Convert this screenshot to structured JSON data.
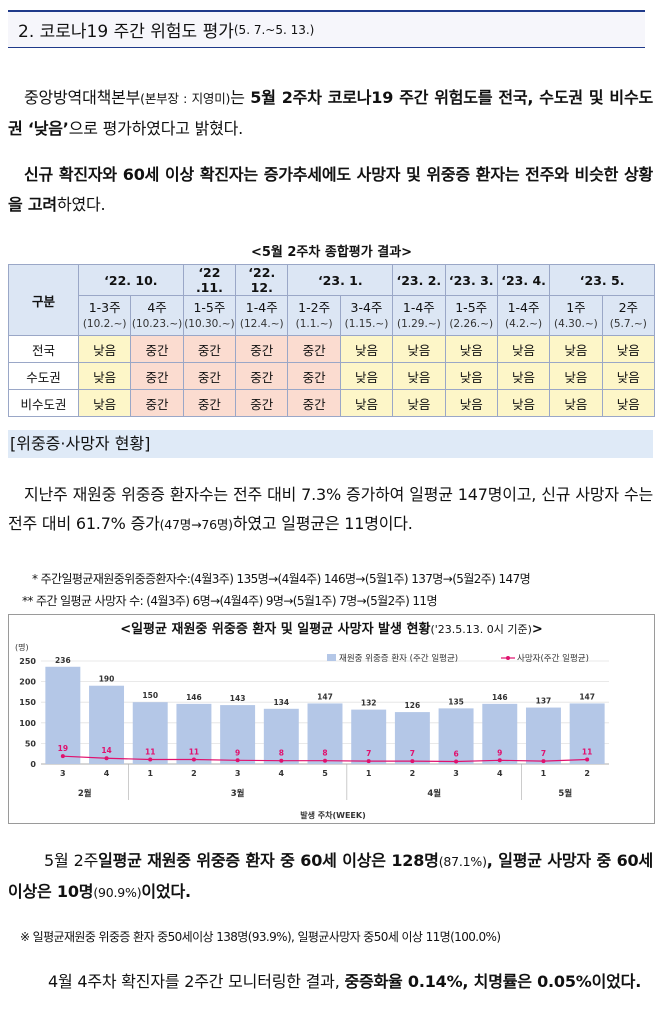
{
  "section": {
    "title_main": "2. 코로나19 주간 위험도 평가",
    "title_period": "(5. 7.~5. 13.)"
  },
  "para1": {
    "t1": "중앙방역대책본부",
    "t2": "(본부장 : 지영미)",
    "t3": "는 ",
    "t4": "5월 2주차 코로나19 주간 위험도를 전국, 수도권 및 비수도권 ‘낮음’",
    "t5": "으로 평가하였다고 밝혔다."
  },
  "para2": {
    "t1": "신규 확진자와 60세 이상 확진자는 증가추세에도 사망자 및 위중증 환자는 전주와 비슷한 상황을 고려",
    "t2": "하였다."
  },
  "table": {
    "title": "<5월 2주차 종합평가 결과>",
    "corner": "구분",
    "months": [
      {
        "label": "‘22. 10.",
        "span": 2
      },
      {
        "label": "‘22 .11.",
        "span": 1
      },
      {
        "label": "‘22. 12.",
        "span": 1
      },
      {
        "label": "‘23. 1.",
        "span": 2
      },
      {
        "label": "‘23. 2.",
        "span": 1
      },
      {
        "label": "‘23. 3.",
        "span": 1
      },
      {
        "label": "‘23. 4.",
        "span": 1
      },
      {
        "label": "‘23. 5.",
        "span": 2
      }
    ],
    "weeks": [
      {
        "w": "1-3주",
        "d": "(10.2.~)"
      },
      {
        "w": "4주",
        "d": "(10.23.~)"
      },
      {
        "w": "1-5주",
        "d": "(10.30.~)"
      },
      {
        "w": "1-4주",
        "d": "(12.4.~)"
      },
      {
        "w": "1-2주",
        "d": "(1.1.~)"
      },
      {
        "w": "3-4주",
        "d": "(1.15.~)"
      },
      {
        "w": "1-4주",
        "d": "(1.29.~)"
      },
      {
        "w": "1-5주",
        "d": "(2.26.~)"
      },
      {
        "w": "1-4주",
        "d": "(4.2.~)"
      },
      {
        "w": "1주",
        "d": "(4.30.~)"
      },
      {
        "w": "2주",
        "d": "(5.7.~)"
      }
    ],
    "rows": [
      {
        "label": "전국",
        "cells": [
          "낮음",
          "중간",
          "중간",
          "중간",
          "중간",
          "낮음",
          "낮음",
          "낮음",
          "낮음",
          "낮음",
          "낮음"
        ]
      },
      {
        "label": "수도권",
        "cells": [
          "낮음",
          "중간",
          "중간",
          "중간",
          "중간",
          "낮음",
          "낮음",
          "낮음",
          "낮음",
          "낮음",
          "낮음"
        ]
      },
      {
        "label": "비수도권",
        "cells": [
          "낮음",
          "중간",
          "중간",
          "중간",
          "중간",
          "낮음",
          "낮음",
          "낮음",
          "낮음",
          "낮음",
          "낮음"
        ]
      }
    ],
    "colors": {
      "low": "#fdf6c8",
      "mid": "#fbdcd0"
    }
  },
  "subsection": "[위중증·사망자 현황]",
  "para3": {
    "t1": "지난주 재원중 위중증 환자수는 전주 대비 7.3% 증가하여 일평균 147명이고, 신규 사망자 수는 전주 대비 61.7% 증가",
    "t2": "(47명→76명)",
    "t3": "하였고 일평균은 11명이다."
  },
  "notes": {
    "n1": "*  주간일평균재원중위중증환자수:(4월3주) 135명→(4월4주) 146명→(5월1주) 137명→(5월2주) 147명",
    "n2": "** 주간 일평균 사망자 수: (4월3주) 6명→(4월4주) 9명→(5월1주) 7명→(5월2주) 11명"
  },
  "chart_data": {
    "type": "bar",
    "title": "<일평균 재원중 위중증 환자 및 일평균 사망자 발생 현황",
    "title_note": "('23.5.13. 0시 기준)",
    "title_end": ">",
    "ylabel": "(명)",
    "ylim": [
      0,
      250
    ],
    "yticks": [
      "0",
      "50",
      "100",
      "150",
      "200",
      "250"
    ],
    "xlabel": "발생 주차(WEEK)",
    "categories": [
      "3",
      "4",
      "1",
      "2",
      "3",
      "4",
      "5",
      "1",
      "2",
      "3",
      "4",
      "1",
      "2"
    ],
    "month_groups": [
      {
        "label": "2월",
        "from": 0,
        "to": 1
      },
      {
        "label": "3월",
        "from": 2,
        "to": 6
      },
      {
        "label": "4월",
        "from": 7,
        "to": 10
      },
      {
        "label": "5월",
        "from": 11,
        "to": 12
      }
    ],
    "series": [
      {
        "name": "재원중 위중증 환자 (주간 일평균)",
        "kind": "bar",
        "values": [
          236,
          190,
          150,
          146,
          143,
          134,
          147,
          132,
          126,
          135,
          146,
          137,
          147
        ],
        "color": "#b4c7e7"
      },
      {
        "name": "사망자(주간 일평균)",
        "kind": "line",
        "values": [
          19,
          14,
          11,
          11,
          9,
          8,
          8,
          7,
          7,
          6,
          9,
          7,
          11
        ],
        "color": "#e0126e"
      }
    ]
  },
  "para4": {
    "t1": "5월 2주",
    "t2": "일평균 재원중 위중증 환자 중 60세 이상은 128명",
    "t3": "(87.1%)",
    "t4": ", 일평균 사망자 중 60세 이상은 10명",
    "t5": "(90.9%)",
    "t6": "이었다."
  },
  "note3": "※ 일평균재원중 위중증 환자 중50세이상 138명(93.9%), 일평균사망자 중50세 이상 11명(100.0%)",
  "para5": {
    "t1": "4월 4주차 확진자를 2주간 모니터링한 결과, ",
    "t2": "중증화율 0.14%, 치명률은 0.05%이었다."
  }
}
